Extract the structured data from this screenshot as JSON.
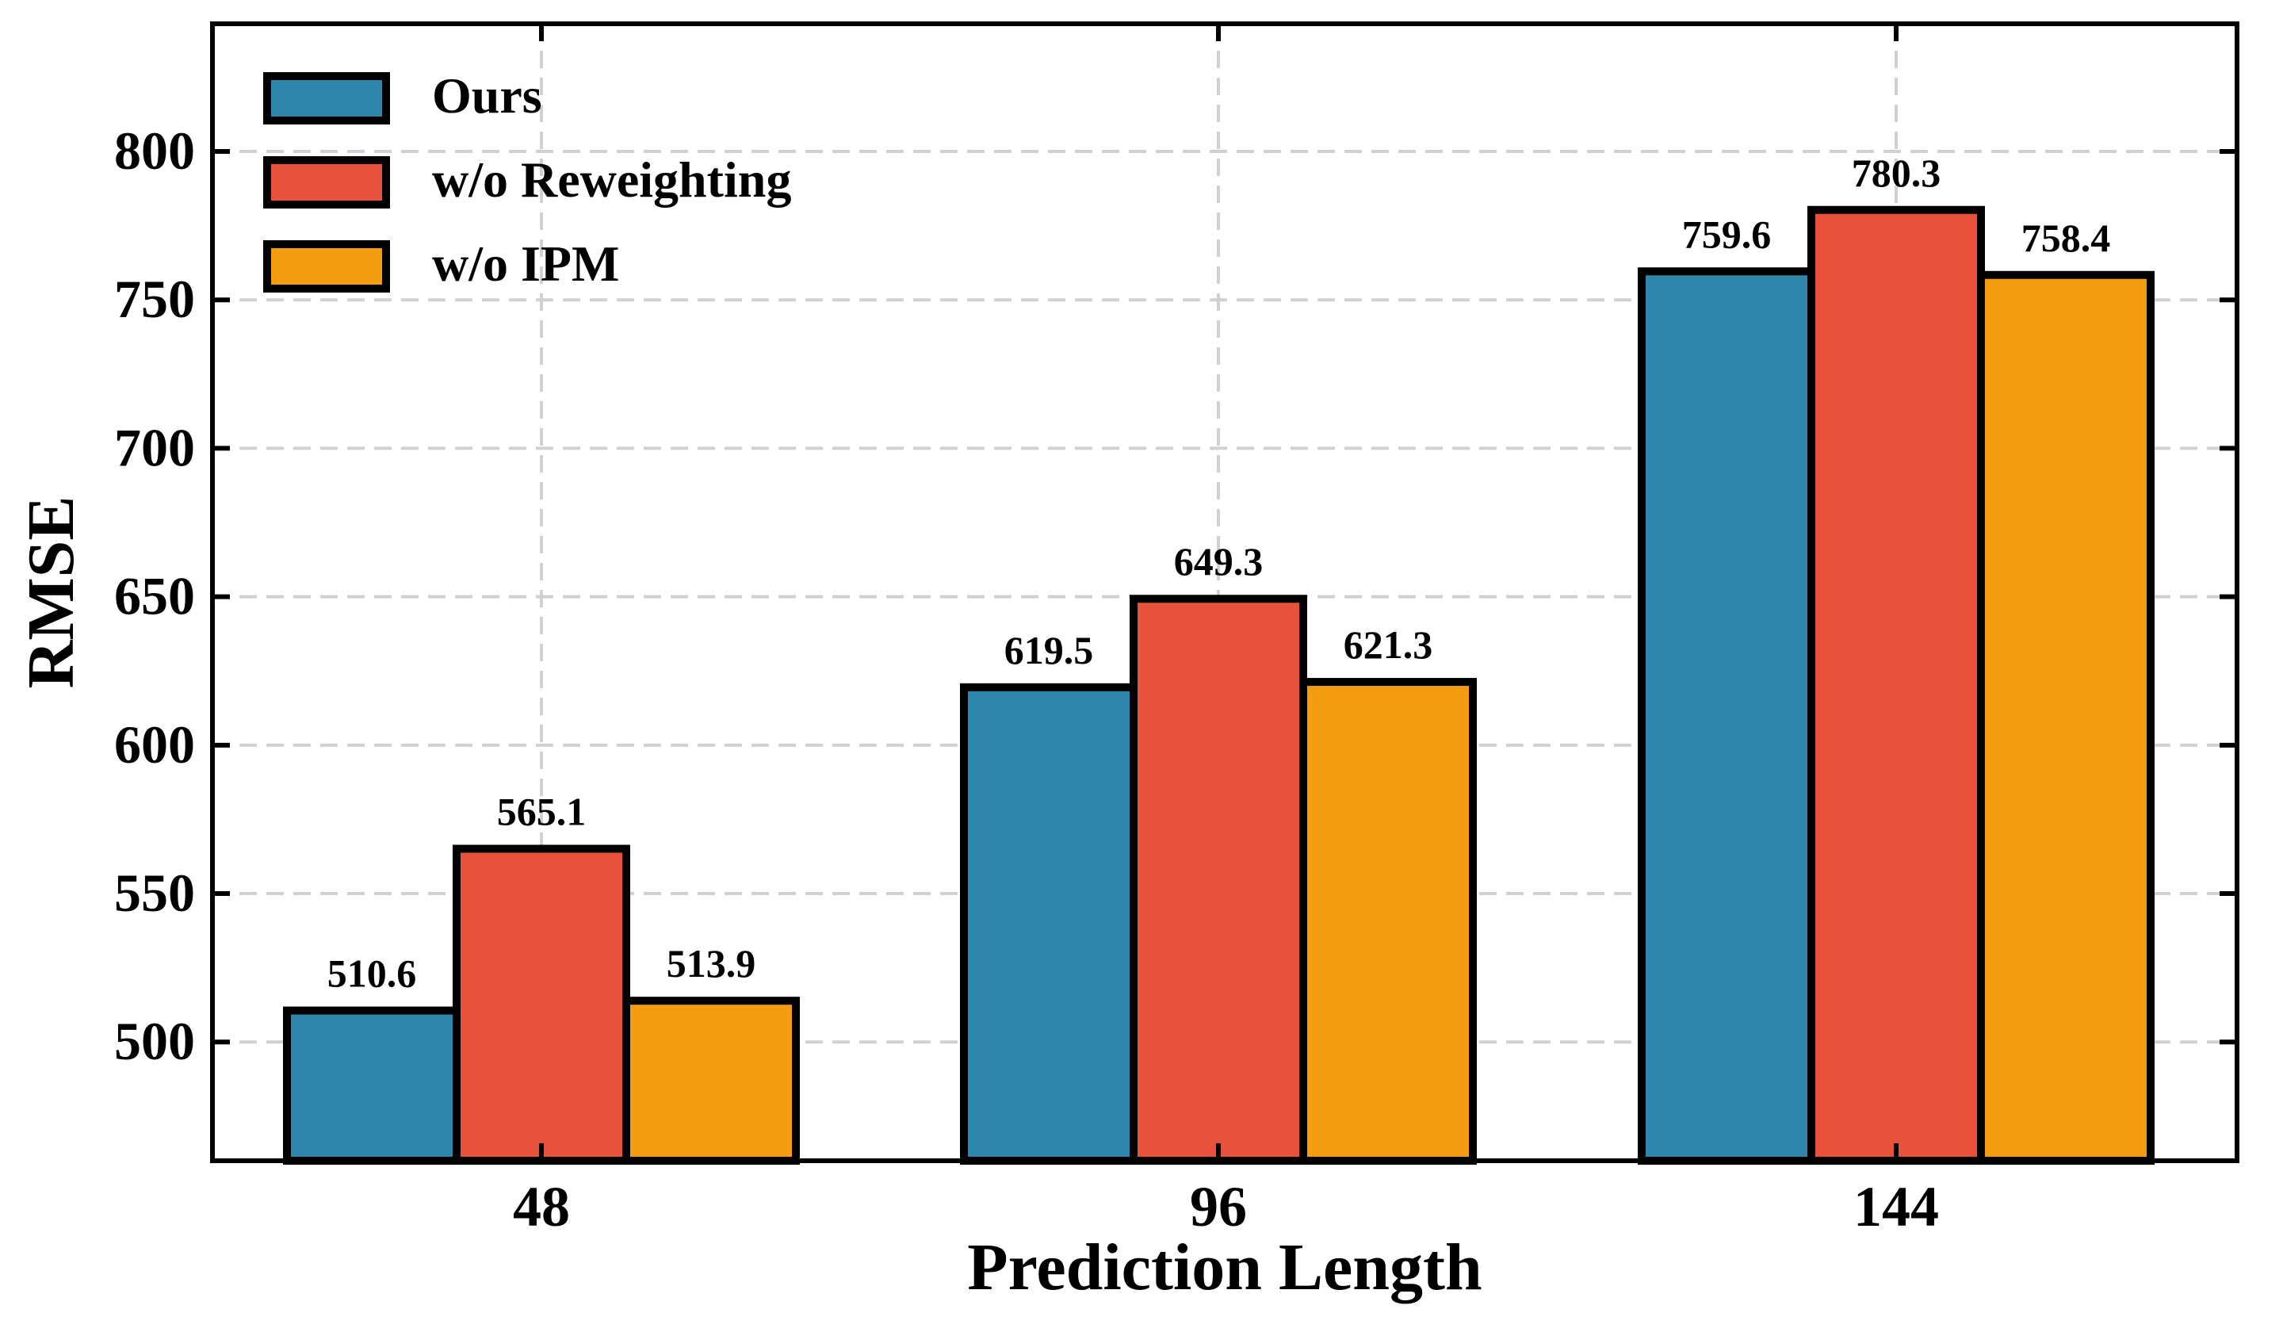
{
  "chart_data": {
    "type": "bar",
    "xlabel": "Prediction Length",
    "ylabel": "RMSE",
    "categories": [
      "48",
      "96",
      "144"
    ],
    "ylim": [
      460,
      843
    ],
    "yticks": [
      500,
      550,
      600,
      650,
      700,
      750,
      800
    ],
    "grid": true,
    "legend_position": "top-left",
    "series": [
      {
        "name": "Ours",
        "color": "#2E86AB",
        "values": [
          510.6,
          619.5,
          759.6
        ],
        "labels": [
          "510.6",
          "619.5",
          "759.6"
        ]
      },
      {
        "name": "w/o Reweighting",
        "color": "#E8523A",
        "values": [
          565.1,
          649.3,
          780.3
        ],
        "labels": [
          "565.1",
          "649.3",
          "780.3"
        ]
      },
      {
        "name": "w/o IPM",
        "color": "#F39C12",
        "values": [
          513.9,
          621.3,
          758.4
        ],
        "labels": [
          "513.9",
          "621.3",
          "758.4"
        ]
      }
    ]
  }
}
